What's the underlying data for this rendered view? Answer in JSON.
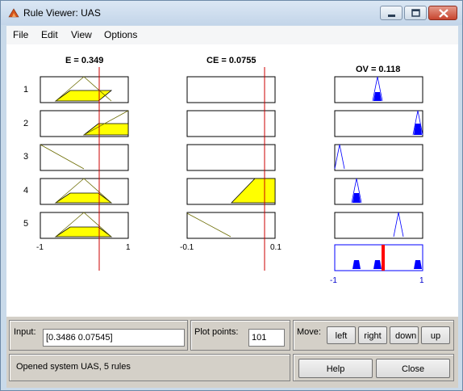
{
  "window": {
    "title": "Rule Viewer: UAS",
    "icon": "matlab-icon"
  },
  "menu": [
    "File",
    "Edit",
    "View",
    "Options"
  ],
  "inputs": [
    {
      "label": "E = 0.349",
      "range": [
        -1,
        1
      ],
      "value": 0.349
    },
    {
      "label": "CE = 0.0755",
      "range": [
        -0.1,
        0.1
      ],
      "value": 0.0755
    }
  ],
  "output": {
    "label": "OV = 0.118",
    "range": [
      -1,
      1
    ],
    "value": 0.118
  },
  "rules": [
    "1",
    "2",
    "3",
    "4",
    "5"
  ],
  "axis_ticks": {
    "e_min": "-1",
    "e_max": "1",
    "ce_min": "-0.1",
    "ce_max": "0.1",
    "ov_min": "-1",
    "ov_max": "1"
  },
  "controls": {
    "input_label": "Input:",
    "input_value": "[0.3486 0.07545]",
    "plot_points_label": "Plot points:",
    "plot_points_value": "101",
    "move_label": "Move:",
    "left": "left",
    "right": "right",
    "down": "down",
    "up": "up",
    "status": "Opened system UAS, 5 rules",
    "help": "Help",
    "close": "Close"
  },
  "colors": {
    "fill": "#ffff00",
    "output_fill": "#0000ff",
    "cursor": "#cc0000",
    "aggregate_bar": "#ff0000"
  }
}
